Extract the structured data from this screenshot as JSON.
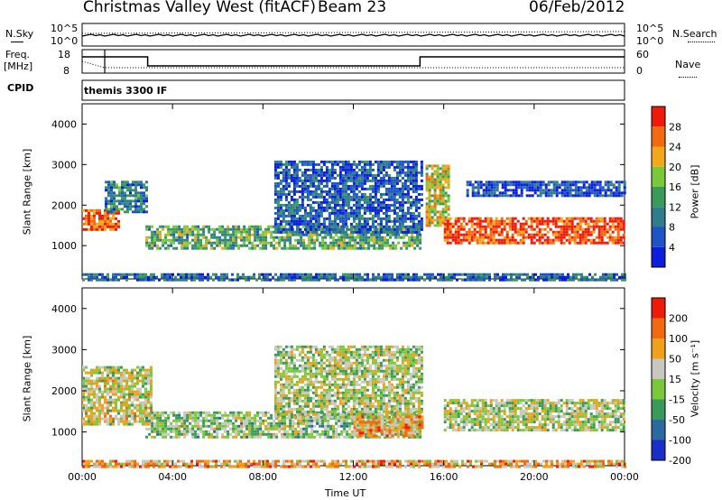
{
  "header": {
    "station": "Christmas Valley West (fitACF)",
    "beam": "Beam 23",
    "date": "06/Feb/2012"
  },
  "strips": {
    "nsky_label": "N.Sky",
    "nsearch_label": "N.Search",
    "nsky_ticks": [
      "10^5",
      "10^0"
    ],
    "nsearch_ticks": [
      "10^5",
      "10^0"
    ],
    "freq_label": "Freq.",
    "freq_unit": "[MHz]",
    "freq_ticks": [
      "18",
      "8"
    ],
    "nave_label": "Nave",
    "nave_ticks": [
      "60",
      "0"
    ],
    "cpid_label": "CPID",
    "cpid_value": "themis 3300 IF"
  },
  "chart_data": [
    {
      "type": "heatmap",
      "name": "power",
      "ylabel": "Slant Range [km]",
      "ylim": [
        180,
        4500
      ],
      "yticks": [
        "4000",
        "3000",
        "2000",
        "1000"
      ],
      "x_ticks": [
        "00:00",
        "04:00",
        "08:00",
        "12:00",
        "16:00",
        "20:00",
        "00:00"
      ],
      "xlim_hours": [
        0,
        24
      ],
      "colorbar": {
        "label": "Power [dB]",
        "ticks": [
          "28",
          "24",
          "20",
          "16",
          "12",
          "8",
          "4"
        ],
        "colors": [
          "#0a1edc",
          "#1f54c8",
          "#2f7d8a",
          "#3a9a5a",
          "#7ac93a",
          "#f2a81a",
          "#f26a10",
          "#ee1a0a"
        ]
      },
      "bands": [
        {
          "t0": 0.0,
          "t1": 1.6,
          "r0": 1400,
          "r1": 1900,
          "level": 0.85
        },
        {
          "t0": 1.0,
          "t1": 2.8,
          "r0": 1800,
          "r1": 2600,
          "level": 0.3
        },
        {
          "t0": 2.8,
          "t1": 15.0,
          "r0": 900,
          "r1": 1500,
          "level": 0.45
        },
        {
          "t0": 8.5,
          "t1": 15.0,
          "r0": 1350,
          "r1": 3100,
          "level": 0.2
        },
        {
          "t0": 15.2,
          "t1": 16.2,
          "r0": 1500,
          "r1": 3000,
          "level": 0.6
        },
        {
          "t0": 16.0,
          "t1": 24.0,
          "r0": 1050,
          "r1": 1700,
          "level": 0.9
        },
        {
          "t0": 17.0,
          "t1": 24.0,
          "r0": 2200,
          "r1": 2600,
          "level": 0.15
        },
        {
          "t0": 0.0,
          "t1": 24.0,
          "r0": 180,
          "r1": 320,
          "level": 0.25
        }
      ]
    },
    {
      "type": "heatmap",
      "name": "velocity",
      "ylabel": "Slant Range [km]",
      "ylim": [
        180,
        4500
      ],
      "yticks": [
        "4000",
        "3000",
        "2000",
        "1000"
      ],
      "x_ticks": [
        "00:00",
        "04:00",
        "08:00",
        "12:00",
        "16:00",
        "20:00",
        "00:00"
      ],
      "xlabel": "Time UT",
      "xlim_hours": [
        0,
        24
      ],
      "colorbar": {
        "label": "Velocity [m s⁻¹]",
        "ticks": [
          "200",
          "100",
          "50",
          "15",
          "-15",
          "-50",
          "-100",
          "-200"
        ],
        "colors": [
          "#1a2ec8",
          "#2a6aa0",
          "#3a9a5a",
          "#7ac93a",
          "#c8c8c0",
          "#f0a01a",
          "#f26a10",
          "#ee1a0a"
        ]
      },
      "bands": [
        {
          "t0": 0.0,
          "t1": 3.0,
          "r0": 1200,
          "r1": 2600,
          "level": 0.55
        },
        {
          "t0": 2.8,
          "t1": 15.0,
          "r0": 900,
          "r1": 1500,
          "level": 0.45
        },
        {
          "t0": 8.5,
          "t1": 15.0,
          "r0": 1350,
          "r1": 3100,
          "level": 0.5
        },
        {
          "t0": 12.0,
          "t1": 15.0,
          "r0": 900,
          "r1": 1400,
          "level": 0.7
        },
        {
          "t0": 16.0,
          "t1": 24.0,
          "r0": 1050,
          "r1": 1800,
          "level": 0.5
        },
        {
          "t0": 0.0,
          "t1": 24.0,
          "r0": 180,
          "r1": 320,
          "level": 0.7
        }
      ]
    }
  ]
}
